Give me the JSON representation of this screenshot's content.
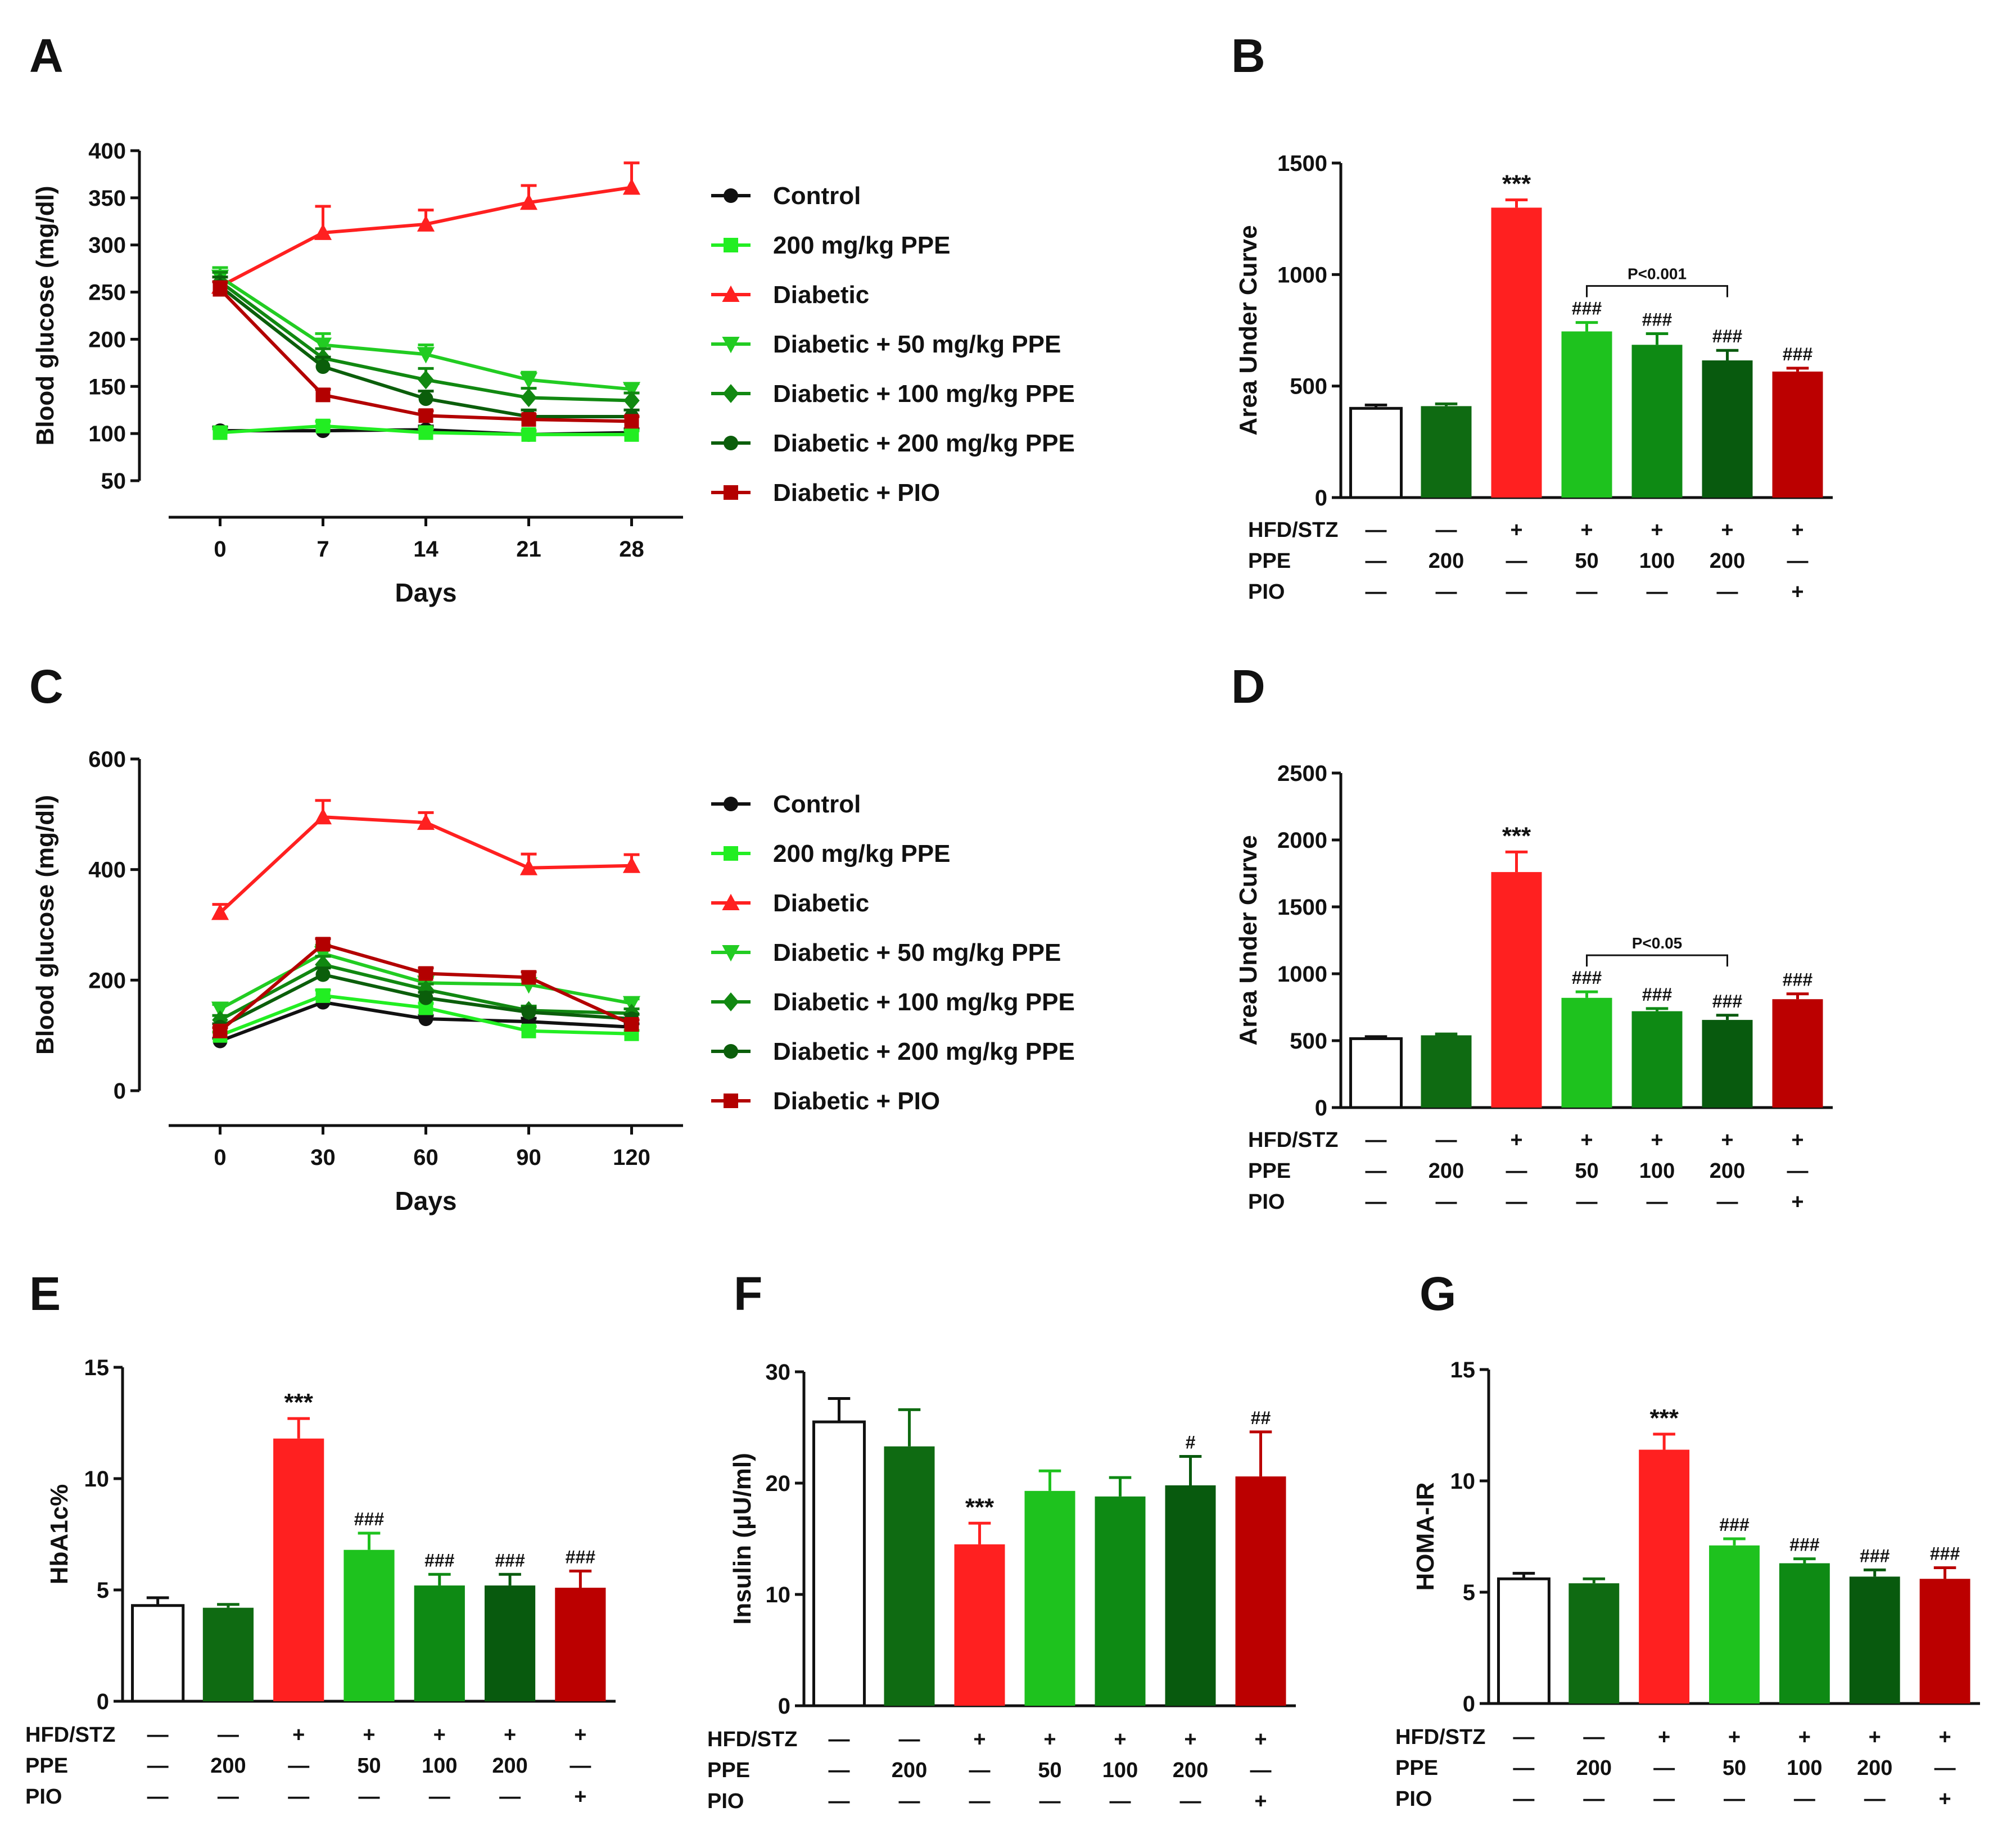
{
  "colors": {
    "control": "#111111",
    "ppe200_only": "#22ee22",
    "diabetic": "#ff2020",
    "ppe50": "#22cc22",
    "ppe100": "#118811",
    "ppe200": "#0b5e0b",
    "pio": "#b30000",
    "bar_ppe200_only": "#0f6b12",
    "bar_ppe50": "#1ec21e",
    "bar_ppe100": "#0e8a14",
    "bar_ppe200": "#085a0e",
    "bar_pio": "#bb0000"
  },
  "legend": [
    {
      "key": "control",
      "label": "Control",
      "marker": "circle"
    },
    {
      "key": "ppe200_only",
      "label": "200 mg/kg PPE",
      "marker": "square"
    },
    {
      "key": "diabetic",
      "label": "Diabetic",
      "marker": "triangle-up"
    },
    {
      "key": "ppe50",
      "label": "Diabetic + 50 mg/kg PPE",
      "marker": "triangle-down"
    },
    {
      "key": "ppe100",
      "label": "Diabetic + 100 mg/kg PPE",
      "marker": "diamond"
    },
    {
      "key": "ppe200",
      "label": "Diabetic + 200 mg/kg PPE",
      "marker": "circle"
    },
    {
      "key": "pio",
      "label": "Diabetic + PIO",
      "marker": "square"
    }
  ],
  "treatment_table": {
    "rows": [
      {
        "label": "HFD/STZ",
        "cells": [
          "—",
          "—",
          "+",
          "+",
          "+",
          "+",
          "+"
        ]
      },
      {
        "label": "PPE",
        "cells": [
          "—",
          "200",
          "—",
          "50",
          "100",
          "200",
          "—"
        ]
      },
      {
        "label": "PIO",
        "cells": [
          "—",
          "—",
          "—",
          "—",
          "—",
          "—",
          "+"
        ]
      }
    ]
  },
  "chart_data": [
    {
      "panel": "A",
      "type": "line",
      "xlabel": "Days",
      "ylabel": "Blood glucose (mg/dl)",
      "x": [
        0,
        7,
        14,
        21,
        28
      ],
      "xticks": [
        "0",
        "7",
        "14",
        "21",
        "28"
      ],
      "ylim": [
        50,
        400
      ],
      "yticks": [
        50,
        100,
        150,
        200,
        250,
        300,
        350,
        400
      ],
      "series": [
        {
          "key": "control",
          "values": [
            103,
            103,
            104,
            99,
            101
          ],
          "errors": [
            4,
            4,
            4,
            4,
            4
          ]
        },
        {
          "key": "ppe200_only",
          "values": [
            101,
            108,
            101,
            99,
            99
          ],
          "errors": [
            4,
            5,
            4,
            4,
            4
          ]
        },
        {
          "key": "diabetic",
          "values": [
            256,
            313,
            322,
            345,
            361
          ],
          "errors": [
            10,
            28,
            15,
            18,
            26
          ]
        },
        {
          "key": "ppe50",
          "values": [
            266,
            194,
            184,
            157,
            147
          ],
          "errors": [
            10,
            12,
            10,
            8,
            6
          ]
        },
        {
          "key": "ppe100",
          "values": [
            261,
            180,
            157,
            138,
            135
          ],
          "errors": [
            10,
            10,
            12,
            10,
            8
          ]
        },
        {
          "key": "ppe200",
          "values": [
            256,
            171,
            137,
            118,
            118
          ],
          "errors": [
            10,
            10,
            8,
            7,
            7
          ]
        },
        {
          "key": "pio",
          "values": [
            253,
            141,
            119,
            115,
            113
          ],
          "errors": [
            8,
            6,
            5,
            5,
            5
          ]
        }
      ]
    },
    {
      "panel": "B",
      "type": "bar",
      "ylabel": "Area Under Curve",
      "ylim": [
        0,
        1500
      ],
      "yticks": [
        0,
        500,
        1000,
        1500
      ],
      "values": [
        400,
        410,
        1300,
        745,
        685,
        615,
        565
      ],
      "errors": [
        15,
        10,
        35,
        40,
        50,
        45,
        15
      ],
      "annotations": [
        "",
        "",
        "***",
        "###",
        "###",
        "###",
        "###"
      ],
      "bracket": {
        "from": 3,
        "to": 5,
        "label": "P<0.001"
      }
    },
    {
      "panel": "C",
      "type": "line",
      "xlabel": "Days",
      "ylabel": "Blood glucose (mg/dl)",
      "x": [
        0,
        30,
        60,
        90,
        120
      ],
      "xticks": [
        "0",
        "30",
        "60",
        "90",
        "120"
      ],
      "ylim": [
        0,
        600
      ],
      "yticks": [
        0,
        200,
        400,
        600
      ],
      "series": [
        {
          "key": "control",
          "values": [
            90,
            160,
            130,
            125,
            115
          ],
          "errors": [
            5,
            8,
            6,
            6,
            6
          ]
        },
        {
          "key": "ppe200_only",
          "values": [
            100,
            172,
            150,
            108,
            103
          ],
          "errors": [
            6,
            10,
            8,
            8,
            6
          ]
        },
        {
          "key": "diabetic",
          "values": [
            322,
            495,
            485,
            403,
            407
          ],
          "errors": [
            15,
            30,
            18,
            25,
            20
          ]
        },
        {
          "key": "ppe50",
          "values": [
            148,
            248,
            195,
            192,
            158
          ],
          "errors": [
            8,
            15,
            10,
            10,
            8
          ]
        },
        {
          "key": "ppe100",
          "values": [
            128,
            228,
            183,
            145,
            140
          ],
          "errors": [
            8,
            15,
            10,
            8,
            8
          ]
        },
        {
          "key": "ppe200",
          "values": [
            115,
            210,
            168,
            142,
            130
          ],
          "errors": [
            6,
            12,
            10,
            8,
            8
          ]
        },
        {
          "key": "pio",
          "values": [
            108,
            265,
            212,
            205,
            120
          ],
          "errors": [
            6,
            10,
            10,
            10,
            8
          ]
        }
      ]
    },
    {
      "panel": "D",
      "type": "bar",
      "ylabel": "Area Under Curve",
      "ylim": [
        0,
        2500
      ],
      "yticks": [
        0,
        500,
        1000,
        1500,
        2000,
        2500
      ],
      "values": [
        515,
        540,
        1760,
        820,
        720,
        655,
        810
      ],
      "errors": [
        15,
        10,
        150,
        45,
        20,
        35,
        40
      ],
      "annotations": [
        "",
        "",
        "***",
        "###",
        "###",
        "###",
        "###"
      ],
      "bracket": {
        "from": 3,
        "to": 5,
        "label": "P<0.05"
      }
    },
    {
      "panel": "E",
      "type": "bar",
      "ylabel": "HbA1c%",
      "ylim": [
        0,
        15
      ],
      "yticks": [
        0,
        5,
        10,
        15
      ],
      "values": [
        4.3,
        4.2,
        11.8,
        6.8,
        5.2,
        5.2,
        5.1
      ],
      "errors": [
        0.35,
        0.15,
        0.9,
        0.75,
        0.5,
        0.5,
        0.75
      ],
      "annotations": [
        "",
        "",
        "***",
        "###",
        "###",
        "###",
        "###"
      ]
    },
    {
      "panel": "F",
      "type": "bar",
      "ylabel": "Insulin (μU/ml)",
      "ylim": [
        0,
        30
      ],
      "yticks": [
        0,
        10,
        20,
        30
      ],
      "values": [
        25.5,
        23.3,
        14.5,
        19.3,
        18.8,
        19.8,
        20.6
      ],
      "errors": [
        2.1,
        3.3,
        1.9,
        1.8,
        1.7,
        2.6,
        4.0
      ],
      "annotations": [
        "",
        "",
        "***",
        "",
        "",
        "#",
        "##"
      ]
    },
    {
      "panel": "G",
      "type": "bar",
      "ylabel": "HOMA-IR",
      "ylim": [
        0,
        15
      ],
      "yticks": [
        0,
        5,
        10,
        15
      ],
      "values": [
        5.6,
        5.4,
        11.4,
        7.1,
        6.3,
        5.7,
        5.6
      ],
      "errors": [
        0.25,
        0.2,
        0.7,
        0.3,
        0.2,
        0.3,
        0.5
      ],
      "annotations": [
        "",
        "",
        "***",
        "###",
        "###",
        "###",
        "###"
      ]
    }
  ],
  "bar_keys": [
    "control",
    "bar_ppe200_only",
    "diabetic",
    "bar_ppe50",
    "bar_ppe100",
    "bar_ppe200",
    "bar_pio"
  ]
}
